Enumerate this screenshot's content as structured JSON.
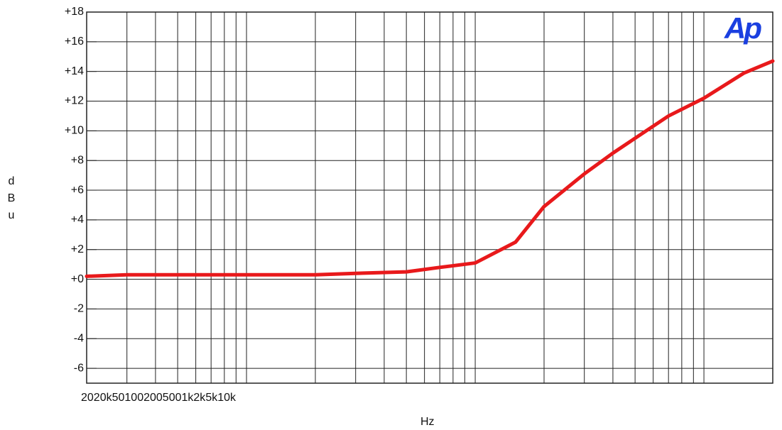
{
  "chart_data": {
    "type": "line",
    "x_label": "Hz",
    "y_label": "dBu",
    "logo": "Ap",
    "x_tick_labels": [
      "20",
      "20k",
      "50",
      "100",
      "200",
      "500",
      "1k",
      "2k",
      "5k",
      "10k"
    ],
    "x_scale": "log",
    "xlim": [
      20,
      20000
    ],
    "xticks": [
      20,
      30,
      40,
      50,
      60,
      70,
      80,
      90,
      100,
      200,
      300,
      400,
      500,
      600,
      700,
      800,
      900,
      1000,
      2000,
      3000,
      4000,
      5000,
      6000,
      7000,
      8000,
      9000,
      10000,
      20000
    ],
    "ylim": [
      -7,
      18
    ],
    "yticks": [
      {
        "value": 18,
        "label": "+18"
      },
      {
        "value": 16,
        "label": "+16"
      },
      {
        "value": 14,
        "label": "+14"
      },
      {
        "value": 12,
        "label": "+12"
      },
      {
        "value": 10,
        "label": "+10"
      },
      {
        "value": 8,
        "label": "+8"
      },
      {
        "value": 6,
        "label": "+6"
      },
      {
        "value": 4,
        "label": "+4"
      },
      {
        "value": 2,
        "label": "+2"
      },
      {
        "value": 0,
        "label": "+0"
      },
      -2,
      -4,
      -6
    ],
    "grid": true,
    "x": [
      20,
      30,
      50,
      100,
      200,
      300,
      500,
      700,
      1000,
      1500,
      2000,
      3000,
      4000,
      5000,
      7000,
      10000,
      15000,
      20000
    ],
    "series": [
      {
        "color": "#e8191b",
        "values": [
          0.2,
          0.3,
          0.3,
          0.3,
          0.3,
          0.4,
          0.5,
          0.8,
          1.1,
          2.5,
          4.9,
          7.1,
          8.5,
          9.5,
          11,
          12.2,
          13.9,
          14.7
        ]
      }
    ]
  }
}
